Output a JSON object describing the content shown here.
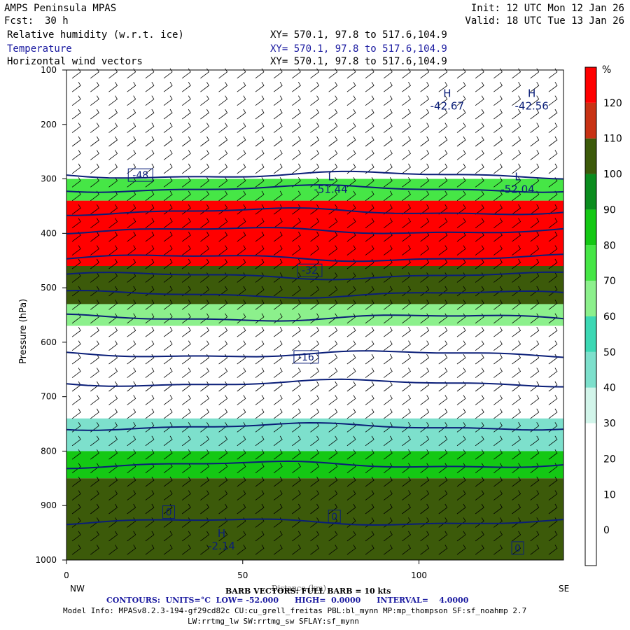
{
  "header": {
    "model": "AMPS Peninsula MPAS",
    "fcst_label": "Fcst:",
    "fcst_value": "30 h",
    "init": "Init: 12 UTC Mon 12 Jan 26",
    "valid": "Valid: 18 UTC Tue 13 Jan 26",
    "fields": [
      {
        "name": "Relative humidity (w.r.t. ice)",
        "xy": "XY= 570.1, 97.8 to 517.6,104.9"
      },
      {
        "name": "Temperature",
        "xy": "XY= 570.1, 97.8 to 517.6,104.9"
      },
      {
        "name": "Horizontal wind vectors",
        "xy": "XY= 570.1, 97.8 to 517.6,104.9"
      }
    ]
  },
  "chart_data": {
    "type": "heatmap",
    "ylabel": "Pressure (hPa)",
    "xlabel": "Distance (km)",
    "xlim": [
      0,
      141
    ],
    "ylim": [
      1000,
      100
    ],
    "x_ticks": [
      0,
      50,
      100
    ],
    "y_ticks": [
      100,
      200,
      300,
      400,
      500,
      600,
      700,
      800,
      900,
      1000
    ],
    "x_end_labels": {
      "left": "NW",
      "right": "SE"
    },
    "colorbar": {
      "unit": "%",
      "levels": [
        0,
        10,
        20,
        30,
        40,
        50,
        60,
        70,
        80,
        90,
        100,
        110,
        120
      ],
      "colors": [
        "#ffffff",
        "#ffffff",
        "#ffffff",
        "#ffffff",
        "#d2f5ea",
        "#7de0cc",
        "#3cd8b4",
        "#8cf08c",
        "#46e646",
        "#14c814",
        "#0a8c1e",
        "#3c5a0a",
        "#c83214",
        "#ff0000"
      ]
    },
    "rh_bands": [
      {
        "p_top": 100,
        "p_bot": 270,
        "rh": 10
      },
      {
        "p_top": 270,
        "p_bot": 300,
        "rh": 20
      },
      {
        "p_top": 300,
        "p_bot": 340,
        "rh": 75
      },
      {
        "p_top": 340,
        "p_bot": 460,
        "rh": 125
      },
      {
        "p_top": 460,
        "p_bot": 530,
        "rh": 105
      },
      {
        "p_top": 530,
        "p_bot": 570,
        "rh": 60
      },
      {
        "p_top": 570,
        "p_bot": 740,
        "rh": 20
      },
      {
        "p_top": 740,
        "p_bot": 800,
        "rh": 45
      },
      {
        "p_top": 800,
        "p_bot": 850,
        "rh": 85
      },
      {
        "p_top": 850,
        "p_bot": 1000,
        "rh": 105
      }
    ],
    "temperature_contours": [
      {
        "value": -48,
        "p": 293
      },
      {
        "value": -44,
        "p": 318
      },
      {
        "value": -40,
        "p": 360
      },
      {
        "value": -36,
        "p": 395
      },
      {
        "value": -32,
        "p": 445
      },
      {
        "value": -28,
        "p": 478
      },
      {
        "value": -24,
        "p": 512
      },
      {
        "value": -20,
        "p": 555
      },
      {
        "value": -16,
        "p": 622
      },
      {
        "value": -12,
        "p": 675
      },
      {
        "value": -8,
        "p": 755
      },
      {
        "value": -4,
        "p": 825
      },
      {
        "value": 0,
        "p": 930
      }
    ],
    "contour_labels": [
      {
        "text": "-48",
        "x": 21,
        "p": 293
      },
      {
        "text": "-32",
        "x": 69,
        "p": 468
      },
      {
        "text": "-16",
        "x": 68,
        "p": 627
      },
      {
        "text": "0",
        "x": 29,
        "p": 912
      },
      {
        "text": "0",
        "x": 76,
        "p": 920
      },
      {
        "text": "0",
        "x": 128,
        "p": 978
      }
    ],
    "extrema": [
      {
        "type": "H",
        "value": "-42.67",
        "x": 108,
        "p": 160
      },
      {
        "type": "H",
        "value": "-42.56",
        "x": 132,
        "p": 160
      },
      {
        "type": "L",
        "value": "-51.44",
        "x": 75,
        "p": 313
      },
      {
        "type": "L",
        "value": "-52.04",
        "x": 128,
        "p": 313
      },
      {
        "type": "H",
        "value": "-2.14",
        "x": 44,
        "p": 968
      }
    ],
    "footer": {
      "barb_note": "BARB VECTORS: FULL BARB = 10 kts",
      "contours_info": "CONTOURS:  UNITS=°C  LOW= -52.000      HIGH=  0.0000      INTERVAL=    4.0000",
      "model_info": "Model Info: MPASv8.2.3-194-gf29cd82c CU:cu_grell_freitas PBL:bl_mynn MP:mp_thompson SF:sf_noahmp 2.7",
      "model_info2": "LW:rrtmg_lw SW:rrtmg_sw SFLAY:sf_mynn"
    }
  }
}
